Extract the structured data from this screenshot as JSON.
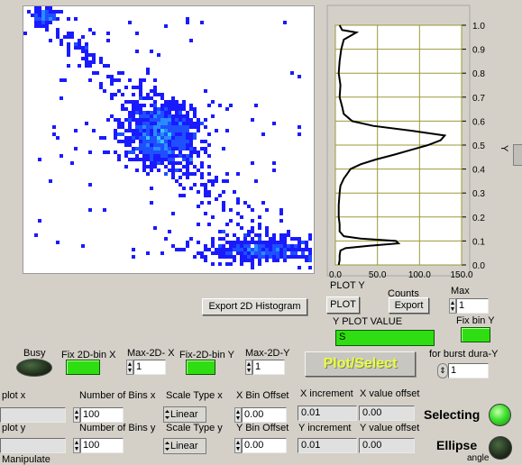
{
  "histogram2d": {
    "bg": "#ffffff"
  },
  "plot_y": {
    "x_ticks": [
      "0.0",
      "50.0",
      "100.0",
      "150.0"
    ],
    "y_ticks": [
      "1.0",
      "0.9",
      "0.8",
      "0.7",
      "0.6",
      "0.5",
      "0.4",
      "0.3",
      "0.2",
      "0.1",
      "0.0"
    ],
    "y_axis_label": "Y",
    "x_axis_label": "Counts",
    "title": "PLOT Y",
    "profile": [
      [
        0.0,
        4
      ],
      [
        0.02,
        5
      ],
      [
        0.04,
        5
      ],
      [
        0.06,
        6
      ],
      [
        0.07,
        12
      ],
      [
        0.08,
        40
      ],
      [
        0.09,
        75
      ],
      [
        0.1,
        72
      ],
      [
        0.11,
        30
      ],
      [
        0.12,
        10
      ],
      [
        0.14,
        5
      ],
      [
        0.17,
        5
      ],
      [
        0.2,
        4
      ],
      [
        0.25,
        4
      ],
      [
        0.3,
        5
      ],
      [
        0.33,
        6
      ],
      [
        0.36,
        10
      ],
      [
        0.38,
        14
      ],
      [
        0.4,
        18
      ],
      [
        0.42,
        30
      ],
      [
        0.44,
        48
      ],
      [
        0.46,
        70
      ],
      [
        0.48,
        90
      ],
      [
        0.5,
        110
      ],
      [
        0.52,
        125
      ],
      [
        0.54,
        130
      ],
      [
        0.56,
        90
      ],
      [
        0.58,
        45
      ],
      [
        0.6,
        20
      ],
      [
        0.63,
        10
      ],
      [
        0.66,
        8
      ],
      [
        0.7,
        5
      ],
      [
        0.75,
        6
      ],
      [
        0.8,
        4
      ],
      [
        0.85,
        5
      ],
      [
        0.9,
        7
      ],
      [
        0.94,
        10
      ],
      [
        0.96,
        20
      ],
      [
        0.97,
        25
      ],
      [
        0.98,
        8
      ],
      [
        1.0,
        5
      ]
    ],
    "xlim": [
      0,
      150
    ],
    "ylim": [
      0,
      1
    ]
  },
  "controls": {
    "export_2d": "Export 2D Histogram",
    "plot_btn": "PLOT",
    "export_btn": "Export",
    "max_label": "Max",
    "max_value": "1",
    "y_plot_value_label": "Y PLOT VALUE",
    "y_plot_value": "S",
    "fix_bin_y_label": "Fix bin Y",
    "busy_label": "Busy",
    "fix2d_x_label": "Fix 2D-bin X",
    "max2d_x_label": "Max-2D- X",
    "max2d_x_value": "1",
    "fix2d_y_label": "Fix-2D-bin Y",
    "max2d_y_label": "Max-2D-Y",
    "max2d_y_value": "1",
    "plot_select": "Plot/Select",
    "burst_label": "for burst dura-Y",
    "burst_value": "1"
  },
  "rows": {
    "x": {
      "plot_label": "plot x",
      "bins_label": "Number of Bins x",
      "bins_value": "100",
      "scale_label": "Scale Type x",
      "scale_value": "Linear",
      "offset_label": "X Bin Offset",
      "offset_value": "0.00",
      "inc_label": "X increment",
      "inc_value": "0.01",
      "val_off_label": "X value offset",
      "val_off_value": "0.00"
    },
    "y": {
      "plot_label": "plot y",
      "bins_label": "Number of Bins y",
      "bins_value": "100",
      "scale_label": "Scale Type y",
      "scale_value": "Linear",
      "offset_label": "Y Bin Offset",
      "offset_value": "0.00",
      "inc_label": "Y increment",
      "inc_value": "0.01",
      "val_off_label": "Y value offset",
      "val_off_value": "0.00"
    },
    "manipulate_label": "Manipulate",
    "angle_label": "angle"
  },
  "status": {
    "selecting_label": "Selecting",
    "ellipse_label": "Ellipse"
  },
  "colors": {
    "led_green": "#2ede12",
    "plot_select_text": "#e8ff40",
    "plot_select_bg": "#c8c6c0",
    "grid": "#9a9a3a",
    "scatter": "#1a1aff",
    "scatter_core": "#3aa0ff"
  }
}
